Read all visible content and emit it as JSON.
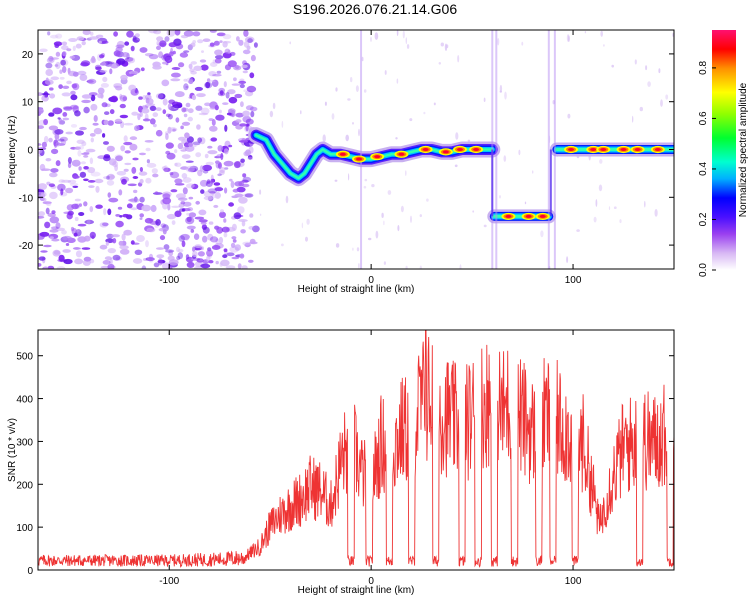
{
  "title": "S196.2026.076.21.14.G06",
  "chart_data": [
    {
      "type": "heatmap",
      "title": "S196.2026.076.21.14.G06",
      "xlabel": "Height of straight line (km)",
      "ylabel": "Frequency (Hz)",
      "xlim": [
        -165,
        150
      ],
      "ylim": [
        -25,
        25
      ],
      "xticks": [
        -100,
        0,
        100
      ],
      "yticks": [
        -20,
        -10,
        0,
        10,
        20
      ],
      "colorbar": {
        "label": "Normalized spectral amplitude",
        "range": [
          0.0,
          0.95
        ],
        "ticks": [
          0.0,
          0.2,
          0.4,
          0.6,
          0.8
        ],
        "colors": [
          "#ffffff",
          "#d5b0f0",
          "#9a40f0",
          "#5a10ff",
          "#0000ff",
          "#00c8ff",
          "#00ffc8",
          "#00ff00",
          "#aaff00",
          "#ffff00",
          "#ffa000",
          "#ff0000",
          "#ff0080"
        ]
      },
      "noise_region_km": [
        -165,
        -57
      ],
      "signal_path": [
        {
          "x": -57,
          "y": 3
        },
        {
          "x": -52,
          "y": 2
        },
        {
          "x": -48,
          "y": -1
        },
        {
          "x": -44,
          "y": -3
        },
        {
          "x": -40,
          "y": -5
        },
        {
          "x": -36,
          "y": -6
        },
        {
          "x": -33,
          "y": -5
        },
        {
          "x": -30,
          "y": -3
        },
        {
          "x": -27,
          "y": -1
        },
        {
          "x": -24,
          "y": 0
        },
        {
          "x": -20,
          "y": -1
        },
        {
          "x": -15,
          "y": -1
        },
        {
          "x": -10,
          "y": -1.5
        },
        {
          "x": -5,
          "y": -2
        },
        {
          "x": 0,
          "y": -2
        },
        {
          "x": 5,
          "y": -1.5
        },
        {
          "x": 10,
          "y": -1
        },
        {
          "x": 15,
          "y": -1
        },
        {
          "x": 20,
          "y": -0.5
        },
        {
          "x": 25,
          "y": 0
        },
        {
          "x": 30,
          "y": 0
        },
        {
          "x": 35,
          "y": -0.5
        },
        {
          "x": 40,
          "y": -0.5
        },
        {
          "x": 45,
          "y": 0
        },
        {
          "x": 50,
          "y": 0
        },
        {
          "x": 55,
          "y": 0
        },
        {
          "x": 60,
          "y": 0
        }
      ],
      "segments": [
        {
          "x_start": 61,
          "x_end": 88,
          "freq_hz": -14
        },
        {
          "x_start": 92,
          "x_end": 150,
          "freq_hz": 0
        }
      ],
      "peaks": [
        {
          "x": -14,
          "y": -1
        },
        {
          "x": -6,
          "y": -2
        },
        {
          "x": 3,
          "y": -1.5
        },
        {
          "x": 15,
          "y": -1
        },
        {
          "x": 27,
          "y": 0
        },
        {
          "x": 37,
          "y": -0.5
        },
        {
          "x": 44,
          "y": 0
        },
        {
          "x": 52,
          "y": 0
        },
        {
          "x": 68,
          "y": -14
        },
        {
          "x": 78,
          "y": -14
        },
        {
          "x": 85,
          "y": -14
        },
        {
          "x": 99,
          "y": 0
        },
        {
          "x": 110,
          "y": 0
        },
        {
          "x": 115,
          "y": 0
        },
        {
          "x": 125,
          "y": 0
        },
        {
          "x": 132,
          "y": 0
        },
        {
          "x": 142,
          "y": 0
        }
      ]
    },
    {
      "type": "line",
      "xlabel": "Height of straight line (km)",
      "ylabel": "SNR (10 * v/v)",
      "xlim": [
        -165,
        150
      ],
      "ylim": [
        0,
        560
      ],
      "xticks": [
        -100,
        0,
        100
      ],
      "yticks": [
        0,
        100,
        200,
        300,
        400,
        500
      ],
      "series": [
        {
          "name": "SNR",
          "color": "#ee3333",
          "envelope": [
            {
              "x": -165,
              "y": 22
            },
            {
              "x": -100,
              "y": 22
            },
            {
              "x": -75,
              "y": 28
            },
            {
              "x": -62,
              "y": 35
            },
            {
              "x": -55,
              "y": 60
            },
            {
              "x": -50,
              "y": 110
            },
            {
              "x": -45,
              "y": 140
            },
            {
              "x": -40,
              "y": 160
            },
            {
              "x": -35,
              "y": 180
            },
            {
              "x": -30,
              "y": 210
            },
            {
              "x": -25,
              "y": 200
            },
            {
              "x": -20,
              "y": 160
            },
            {
              "x": -15,
              "y": 270
            },
            {
              "x": -10,
              "y": 330
            },
            {
              "x": -5,
              "y": 250
            },
            {
              "x": 0,
              "y": 215
            },
            {
              "x": 5,
              "y": 320
            },
            {
              "x": 10,
              "y": 300
            },
            {
              "x": 15,
              "y": 350
            },
            {
              "x": 20,
              "y": 360
            },
            {
              "x": 25,
              "y": 420
            },
            {
              "x": 30,
              "y": 440
            },
            {
              "x": 35,
              "y": 400
            },
            {
              "x": 40,
              "y": 380
            },
            {
              "x": 45,
              "y": 360
            },
            {
              "x": 50,
              "y": 390
            },
            {
              "x": 55,
              "y": 420
            },
            {
              "x": 60,
              "y": 430
            },
            {
              "x": 65,
              "y": 400
            },
            {
              "x": 70,
              "y": 430
            },
            {
              "x": 75,
              "y": 380
            },
            {
              "x": 80,
              "y": 350
            },
            {
              "x": 85,
              "y": 380
            },
            {
              "x": 90,
              "y": 390
            },
            {
              "x": 95,
              "y": 360
            },
            {
              "x": 100,
              "y": 340
            },
            {
              "x": 105,
              "y": 320
            },
            {
              "x": 110,
              "y": 200
            },
            {
              "x": 113,
              "y": 110
            },
            {
              "x": 117,
              "y": 190
            },
            {
              "x": 120,
              "y": 240
            },
            {
              "x": 125,
              "y": 310
            },
            {
              "x": 130,
              "y": 320
            },
            {
              "x": 135,
              "y": 330
            },
            {
              "x": 140,
              "y": 320
            },
            {
              "x": 145,
              "y": 340
            },
            {
              "x": 150,
              "y": 360
            }
          ],
          "dropouts_x": [
            -10,
            -1,
            9,
            20,
            32,
            45,
            53,
            61,
            71,
            83,
            90,
            101,
            133,
            148
          ],
          "peak": {
            "x": 27,
            "y": 560
          }
        }
      ]
    }
  ]
}
